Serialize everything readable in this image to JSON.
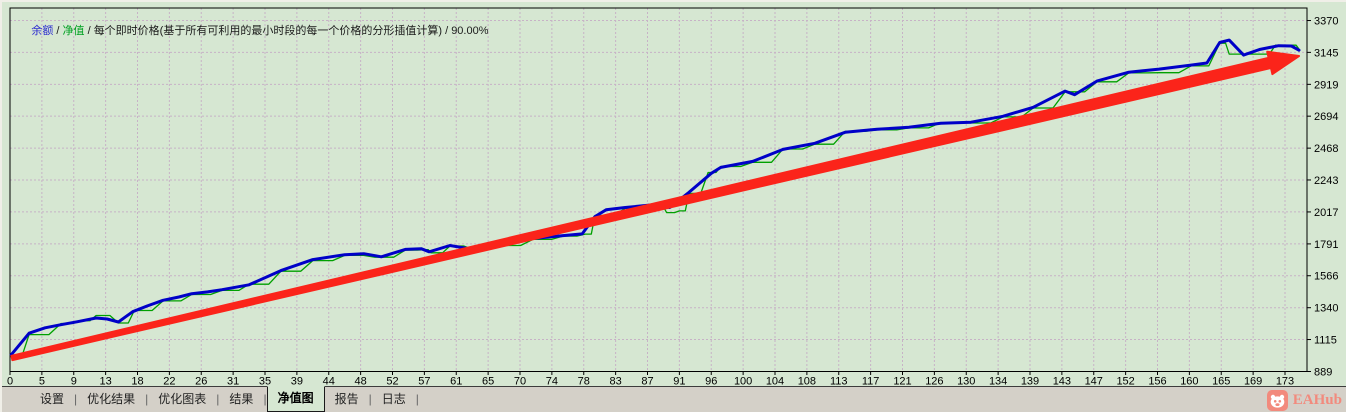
{
  "chart_data": {
    "type": "line",
    "title": "余额 / 净值 / 每个即时价格(基于所有可利用的最小时段的每一个价格的分形插值计算) / 90.00%",
    "legend": {
      "balance": "余额",
      "equity": "净值",
      "sep": " / ",
      "description": "每个即时价格(基于所有可利用的最小时段的每一个价格的分形插值计算)",
      "quality": "90.00%"
    },
    "grid": true,
    "legend_position": "top-left-inline",
    "x_tick_labels": [
      "0",
      "5",
      "9",
      "13",
      "18",
      "22",
      "26",
      "31",
      "35",
      "39",
      "44",
      "48",
      "52",
      "57",
      "61",
      "65",
      "70",
      "74",
      "78",
      "83",
      "87",
      "91",
      "96",
      "100",
      "104",
      "108",
      "113",
      "117",
      "121",
      "126",
      "130",
      "134",
      "139",
      "143",
      "147",
      "152",
      "156",
      "160",
      "165",
      "169",
      "173"
    ],
    "y_tick_labels": [
      "3370",
      "3145",
      "2919",
      "2694",
      "2468",
      "2243",
      "2017",
      "1791",
      "1566",
      "1340",
      "1115",
      "889"
    ],
    "y_tick_values": [
      3370,
      3145,
      2919,
      2694,
      2468,
      2243,
      2017,
      1791,
      1566,
      1340,
      1115,
      889
    ],
    "y_range": [
      889,
      3370
    ],
    "colors": {
      "background": "#d6e7d2",
      "grid": "#c7b2c6",
      "frame": "#000000"
    },
    "series": [
      {
        "key": "balance",
        "name": "余额",
        "color": "#0000c8",
        "width": 3,
        "style": "linear",
        "points": [
          [
            0.04,
            1008
          ],
          [
            0.6,
            1160
          ],
          [
            1.1,
            1198
          ],
          [
            1.6,
            1220
          ],
          [
            2.1,
            1240
          ],
          [
            2.7,
            1267
          ],
          [
            3.05,
            1260
          ],
          [
            3.4,
            1239
          ],
          [
            3.85,
            1312
          ],
          [
            4.3,
            1352
          ],
          [
            4.8,
            1392
          ],
          [
            5.3,
            1416
          ],
          [
            5.7,
            1439
          ],
          [
            6.2,
            1452
          ],
          [
            6.65,
            1467
          ],
          [
            7.5,
            1502
          ],
          [
            8.5,
            1602
          ],
          [
            9.5,
            1680
          ],
          [
            10.5,
            1715
          ],
          [
            11.1,
            1722
          ],
          [
            11.65,
            1700
          ],
          [
            12.4,
            1752
          ],
          [
            12.9,
            1757
          ],
          [
            13.15,
            1735
          ],
          [
            13.8,
            1780
          ],
          [
            14.4,
            1757
          ],
          [
            14.85,
            1762
          ],
          [
            15.4,
            1786
          ],
          [
            16.4,
            1829
          ],
          [
            17.35,
            1850
          ],
          [
            17.95,
            1862
          ],
          [
            18.35,
            1984
          ],
          [
            18.7,
            2032
          ],
          [
            19.3,
            2048
          ],
          [
            20.3,
            2070
          ],
          [
            20.7,
            2048
          ],
          [
            21.3,
            2155
          ],
          [
            22.0,
            2290
          ],
          [
            22.3,
            2332
          ],
          [
            23.3,
            2374
          ],
          [
            24.25,
            2459
          ],
          [
            25.25,
            2502
          ],
          [
            26.2,
            2580
          ],
          [
            27.2,
            2601
          ],
          [
            28.2,
            2615
          ],
          [
            29.2,
            2644
          ],
          [
            30.15,
            2651
          ],
          [
            31.15,
            2693
          ],
          [
            32.1,
            2757
          ],
          [
            33.1,
            2871
          ],
          [
            33.4,
            2846
          ],
          [
            34.1,
            2942
          ],
          [
            35.1,
            3005
          ],
          [
            36.05,
            3027
          ],
          [
            37.05,
            3055
          ],
          [
            37.55,
            3070
          ],
          [
            37.95,
            3215
          ],
          [
            38.25,
            3232
          ],
          [
            38.7,
            3126
          ],
          [
            39.2,
            3165
          ],
          [
            39.8,
            3192
          ],
          [
            40.2,
            3190
          ],
          [
            40.44,
            3160
          ]
        ]
      },
      {
        "key": "equity",
        "name": "净值",
        "color": "#00a000",
        "width": 1.3,
        "style": "step",
        "points": [
          [
            0.04,
            1005
          ],
          [
            0.6,
            1150
          ],
          [
            1.6,
            1228
          ],
          [
            2.2,
            1248
          ],
          [
            2.7,
            1285
          ],
          [
            3.4,
            1232
          ],
          [
            3.9,
            1320
          ],
          [
            4.8,
            1388
          ],
          [
            5.7,
            1433
          ],
          [
            6.65,
            1462
          ],
          [
            7.5,
            1506
          ],
          [
            8.5,
            1598
          ],
          [
            9.5,
            1673
          ],
          [
            10.5,
            1710
          ],
          [
            11.45,
            1697
          ],
          [
            12.4,
            1747
          ],
          [
            13.0,
            1750
          ],
          [
            13.2,
            1728
          ],
          [
            13.8,
            1776
          ],
          [
            14.5,
            1752
          ],
          [
            15.4,
            1780
          ],
          [
            16.4,
            1823
          ],
          [
            17.35,
            1846
          ],
          [
            18.05,
            1860
          ],
          [
            18.35,
            1992
          ],
          [
            19.3,
            2042
          ],
          [
            20.3,
            2060
          ],
          [
            20.6,
            2012
          ],
          [
            21.0,
            2024
          ],
          [
            21.3,
            2148
          ],
          [
            21.9,
            2296
          ],
          [
            22.3,
            2338
          ],
          [
            23.3,
            2368
          ],
          [
            24.25,
            2462
          ],
          [
            25.25,
            2496
          ],
          [
            26.2,
            2586
          ],
          [
            27.2,
            2597
          ],
          [
            28.2,
            2611
          ],
          [
            29.2,
            2648
          ],
          [
            30.15,
            2646
          ],
          [
            31.15,
            2689
          ],
          [
            32.1,
            2752
          ],
          [
            33.1,
            2866
          ],
          [
            34.1,
            2937
          ],
          [
            35.1,
            3000
          ],
          [
            36.05,
            3001
          ],
          [
            37.05,
            3049
          ],
          [
            37.95,
            3210
          ],
          [
            38.25,
            3133
          ],
          [
            39.2,
            3133
          ],
          [
            39.7,
            3196
          ],
          [
            40.2,
            3196
          ],
          [
            40.44,
            3168
          ]
        ]
      }
    ],
    "annotation_arrow": {
      "from": [
        0.06,
        985
      ],
      "to": [
        40.44,
        3119
      ],
      "color": "#fb241a"
    }
  },
  "tabbar": {
    "separator": "|",
    "tabs": [
      {
        "label": "设置",
        "name": "tab-settings",
        "active": false,
        "sep_after": true
      },
      {
        "label": "优化结果",
        "name": "tab-optimization-results",
        "active": false,
        "sep_after": true
      },
      {
        "label": "优化图表",
        "name": "tab-optimization-graph",
        "active": false,
        "sep_after": true
      },
      {
        "label": "结果",
        "name": "tab-results",
        "active": false,
        "sep_after": true
      },
      {
        "label": "净值图",
        "name": "tab-equity-graph",
        "active": true,
        "sep_after": false
      },
      {
        "label": "报告",
        "name": "tab-report",
        "active": false,
        "sep_after": true
      },
      {
        "label": "日志",
        "name": "tab-journal",
        "active": false,
        "sep_after": true
      }
    ]
  },
  "logo": {
    "text": "EAHub",
    "icon": "eahub-mascot-icon",
    "color": "#f28a7d"
  }
}
